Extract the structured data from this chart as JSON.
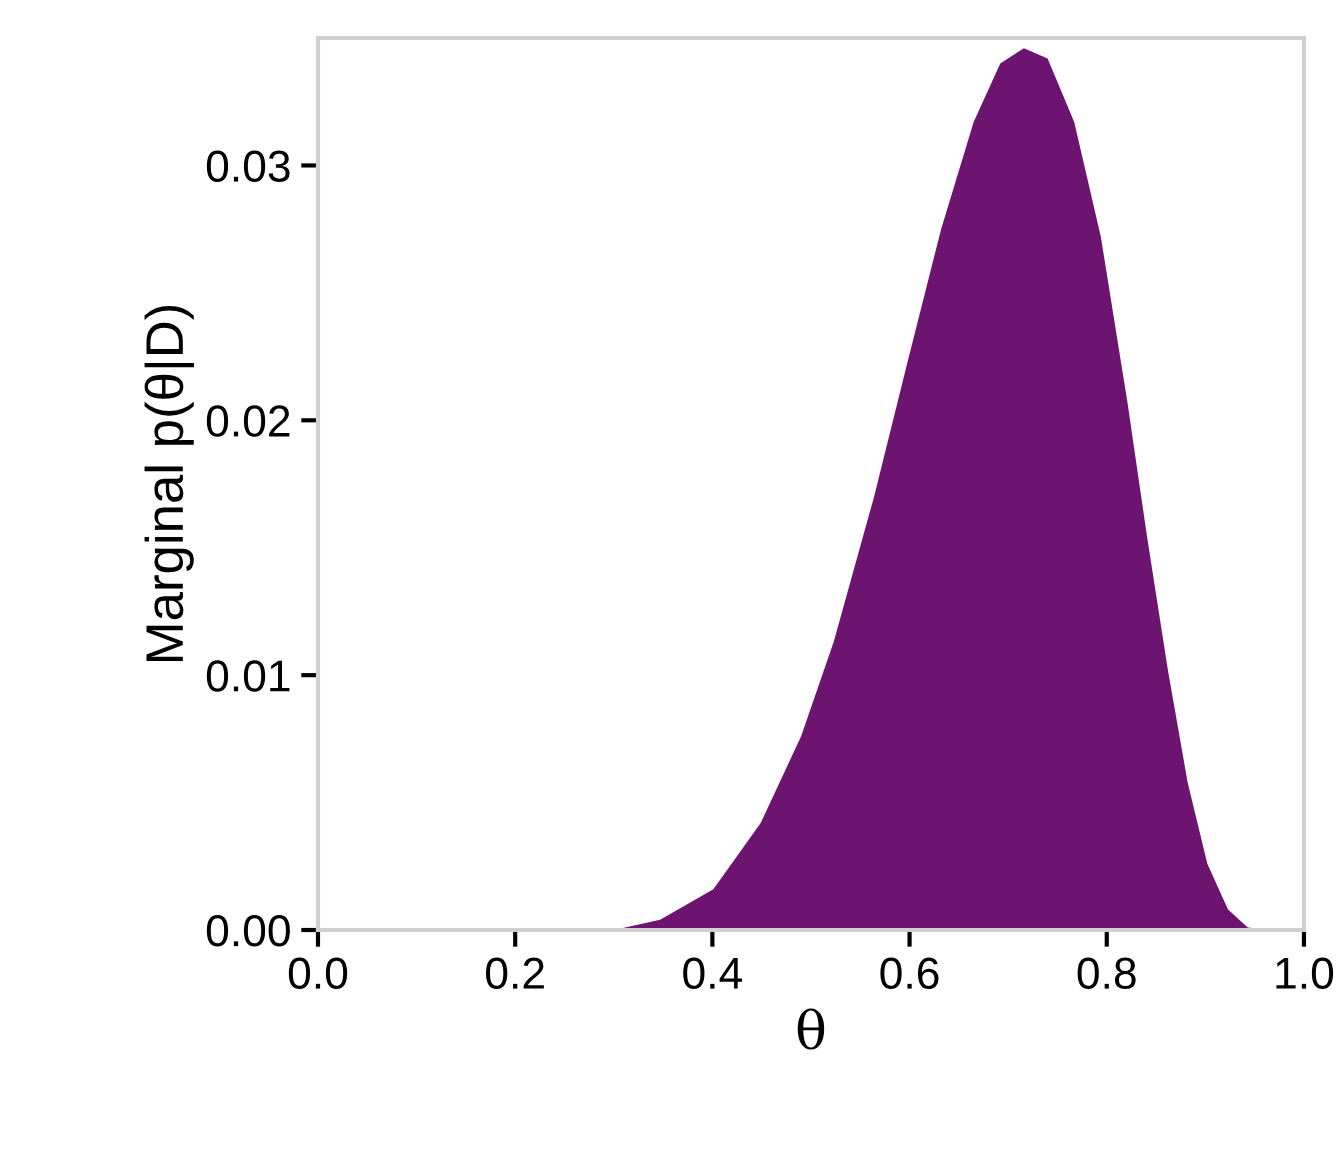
{
  "chart_data": {
    "type": "area",
    "xlabel": "θ",
    "ylabel": "Marginal p(θ|D)",
    "x": [
      0.0,
      0.3,
      0.347,
      0.401,
      0.449,
      0.49,
      0.523,
      0.564,
      0.598,
      0.632,
      0.665,
      0.692,
      0.716,
      0.74,
      0.767,
      0.794,
      0.821,
      0.841,
      0.862,
      0.882,
      0.902,
      0.923,
      0.943,
      0.963,
      1.0
    ],
    "series": [
      {
        "color": "#6c1470",
        "values": [
          0,
          0,
          0.0004,
          0.0016,
          0.0042,
          0.0076,
          0.0113,
          0.017,
          0.0223,
          0.0275,
          0.0317,
          0.034,
          0.0346,
          0.0342,
          0.0317,
          0.0272,
          0.0207,
          0.0154,
          0.0102,
          0.0058,
          0.0026,
          0.0008,
          0.0001,
          0,
          0
        ]
      }
    ],
    "xlim": [
      0,
      1
    ],
    "ylim": [
      0,
      0.035
    ],
    "xticks": [
      {
        "value": 0,
        "label": "0.0"
      },
      0.2,
      0.4,
      0.6,
      0.8,
      {
        "value": 1,
        "label": "1.0"
      }
    ],
    "yticks": [
      {
        "value": 0,
        "label": "0.00"
      },
      {
        "value": 0.01,
        "label": "0.01"
      },
      {
        "value": 0.02,
        "label": "0.02"
      },
      {
        "value": 0.03,
        "label": "0.03"
      }
    ],
    "grid": false,
    "legend": false
  }
}
